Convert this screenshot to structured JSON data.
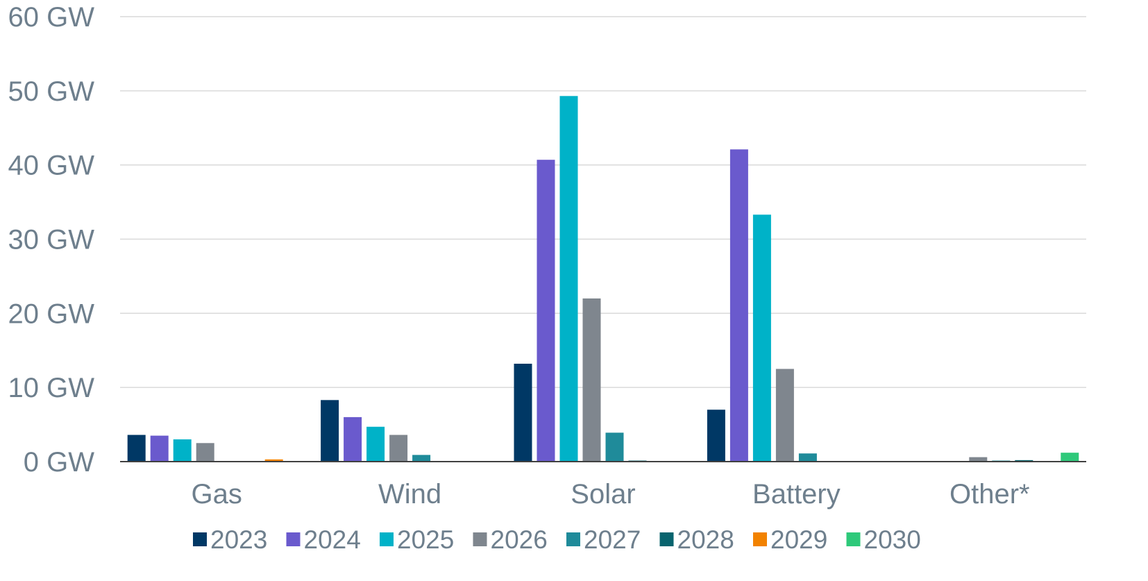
{
  "chart_data": {
    "type": "bar",
    "title": "",
    "xlabel": "",
    "ylabel": "",
    "unit": "GW",
    "ylim": [
      0,
      60
    ],
    "yticks": [
      0,
      10,
      20,
      30,
      40,
      50,
      60
    ],
    "ytick_labels": [
      "0 GW",
      "10 GW",
      "20 GW",
      "30 GW",
      "40 GW",
      "50 GW",
      "60 GW"
    ],
    "categories": [
      "Gas",
      "Wind",
      "Solar",
      "Battery",
      "Other*"
    ],
    "grid": true,
    "legend_position": "bottom",
    "series": [
      {
        "name": "2023",
        "color": "#003865",
        "values": [
          3.6,
          8.3,
          13.2,
          7.0,
          0
        ]
      },
      {
        "name": "2024",
        "color": "#6a5acd",
        "values": [
          3.5,
          6.0,
          40.7,
          42.1,
          0
        ]
      },
      {
        "name": "2025",
        "color": "#00b2c8",
        "values": [
          3.0,
          4.7,
          49.3,
          33.3,
          0
        ]
      },
      {
        "name": "2026",
        "color": "#7f868e",
        "values": [
          2.5,
          3.6,
          22.0,
          12.5,
          0.6
        ]
      },
      {
        "name": "2027",
        "color": "#1f8b9a",
        "values": [
          0,
          0.9,
          3.9,
          1.1,
          0.1
        ]
      },
      {
        "name": "2028",
        "color": "#08646e",
        "values": [
          0,
          0,
          0.1,
          0,
          0.2
        ]
      },
      {
        "name": "2029",
        "color": "#f28200",
        "values": [
          0.3,
          0,
          0,
          0,
          0
        ]
      },
      {
        "name": "2030",
        "color": "#2ec97a",
        "values": [
          0,
          0,
          0,
          0,
          1.2
        ]
      }
    ]
  }
}
